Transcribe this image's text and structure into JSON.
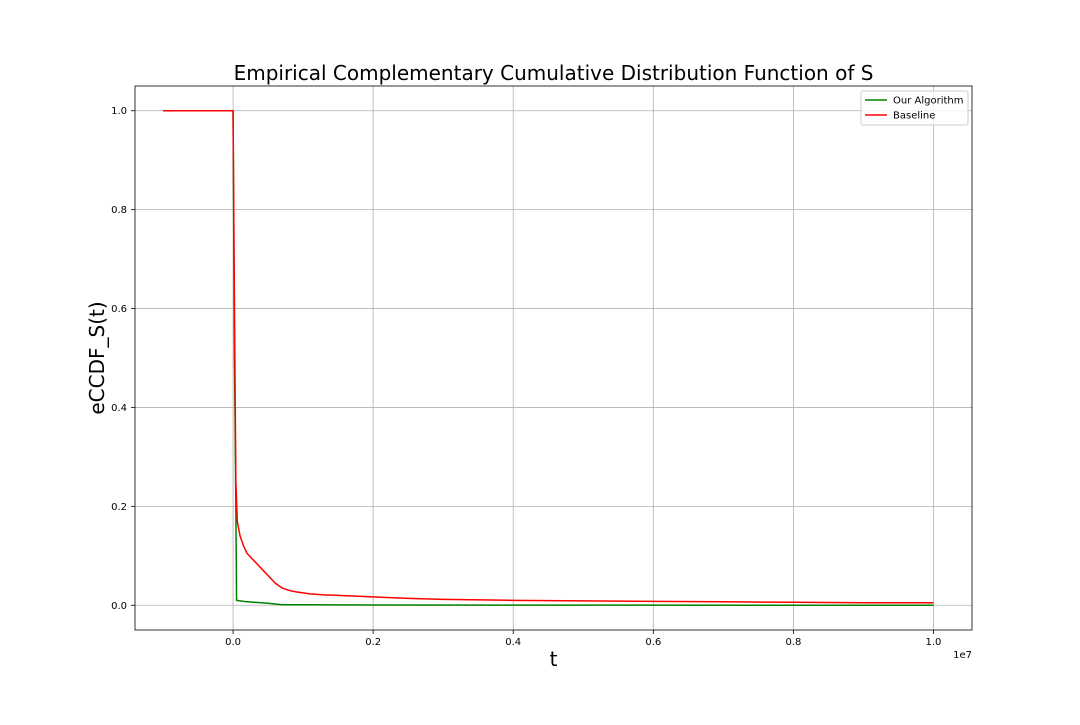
{
  "chart_data": {
    "type": "line",
    "title": "Empirical Complementary Cumulative Distribution Function of S",
    "xlabel": "t",
    "ylabel": "eCCDF_S(t)",
    "x_scale_label": "1e7",
    "xlim": [
      -0.14,
      1.055
    ],
    "ylim": [
      -0.05,
      1.05
    ],
    "xticks": [
      0.0,
      0.2,
      0.4,
      0.6,
      0.8,
      1.0
    ],
    "xtick_labels": [
      "0.0",
      "0.2",
      "0.4",
      "0.6",
      "0.8",
      "1.0"
    ],
    "yticks": [
      0.0,
      0.2,
      0.4,
      0.6,
      0.8,
      1.0
    ],
    "ytick_labels": [
      "0.0",
      "0.2",
      "0.4",
      "0.6",
      "0.8",
      "1.0"
    ],
    "grid": true,
    "legend_position": "top-right",
    "series": [
      {
        "name": "Our Algorithm",
        "color": "#008000",
        "x": [
          -0.1,
          0.0,
          0.002,
          0.004,
          0.005,
          0.02,
          0.05,
          0.07,
          0.1,
          0.2,
          0.5,
          1.0
        ],
        "y": [
          1.0,
          1.0,
          0.5,
          0.2,
          0.01,
          0.007,
          0.004,
          0.001,
          0.001,
          0.0005,
          0.0002,
          0.0
        ]
      },
      {
        "name": "Baseline",
        "color": "#ff0000",
        "x": [
          -0.1,
          0.0,
          0.002,
          0.004,
          0.006,
          0.01,
          0.015,
          0.02,
          0.03,
          0.04,
          0.05,
          0.06,
          0.07,
          0.08,
          0.09,
          0.1,
          0.11,
          0.13,
          0.15,
          0.2,
          0.25,
          0.3,
          0.4,
          0.5,
          0.6,
          0.7,
          0.8,
          0.9,
          1.0
        ],
        "y": [
          1.0,
          1.0,
          0.6,
          0.25,
          0.17,
          0.14,
          0.12,
          0.105,
          0.09,
          0.075,
          0.06,
          0.045,
          0.035,
          0.03,
          0.027,
          0.025,
          0.023,
          0.021,
          0.02,
          0.017,
          0.014,
          0.012,
          0.01,
          0.009,
          0.008,
          0.007,
          0.006,
          0.005,
          0.005
        ]
      }
    ]
  }
}
